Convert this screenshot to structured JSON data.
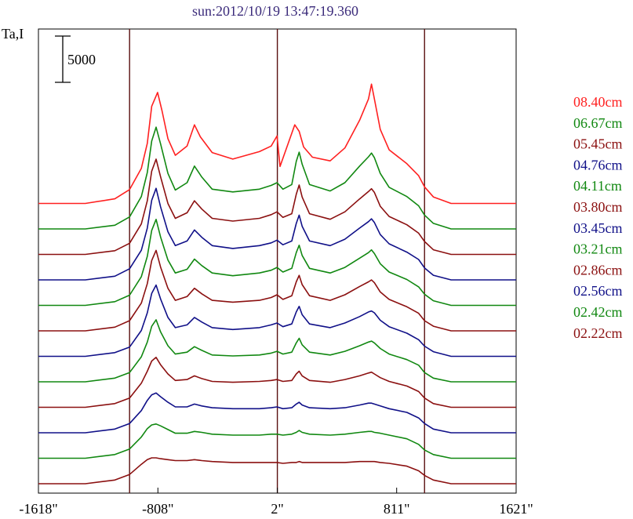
{
  "chart_data": {
    "type": "line",
    "title": "sun:2012/10/19 13:47:19.360",
    "ylabel": "Ta,I",
    "scale_bar_label": "5000",
    "scale_bar_value": 5000,
    "x_tick_labels": [
      "-1618\"",
      "-808\"",
      "2\"",
      "811\"",
      "1621\""
    ],
    "x_ticks": [
      -1618,
      -808,
      2,
      811,
      1621
    ],
    "xlim": [
      -1618,
      1621
    ],
    "vertical_lines_x": [
      -1000,
      2,
      1000
    ],
    "legend_placement": "right",
    "series": [
      {
        "name": "08.40cm",
        "color": "#ff2020",
        "offset_index": 11,
        "x": [
          -1618,
          -1300,
          -1100,
          -1000,
          -920,
          -880,
          -850,
          -810,
          -780,
          -740,
          -690,
          -610,
          -560,
          -520,
          -440,
          -300,
          -120,
          -40,
          0,
          20,
          60,
          120,
          150,
          180,
          240,
          360,
          460,
          560,
          620,
          640,
          660,
          700,
          760,
          880,
          960,
          1000,
          1060,
          1180,
          1621
        ],
        "y": [
          0,
          0,
          500,
          1500,
          3800,
          6500,
          10500,
          12000,
          10000,
          7000,
          5200,
          6200,
          8500,
          7200,
          5500,
          4800,
          5600,
          6200,
          7300,
          4000,
          5800,
          8500,
          7800,
          6100,
          5000,
          4600,
          6000,
          9000,
          11300,
          12900,
          11300,
          8000,
          5800,
          4300,
          3000,
          1800,
          700,
          0,
          0
        ]
      },
      {
        "name": "06.67cm",
        "color": "#118811",
        "offset_index": 10,
        "x": [
          -1618,
          -1300,
          -1100,
          -1000,
          -920,
          -880,
          -850,
          -820,
          -790,
          -740,
          -690,
          -610,
          -560,
          -510,
          -440,
          -300,
          -120,
          -40,
          0,
          40,
          100,
          130,
          150,
          170,
          220,
          360,
          460,
          560,
          620,
          640,
          660,
          700,
          760,
          880,
          960,
          1000,
          1060,
          1180,
          1621
        ],
        "y": [
          0,
          0,
          400,
          1300,
          3500,
          6100,
          9500,
          11000,
          9200,
          6000,
          4200,
          5000,
          6800,
          5600,
          4300,
          4000,
          4300,
          4700,
          5000,
          4300,
          4800,
          7300,
          8300,
          7000,
          4800,
          4100,
          5000,
          6800,
          7800,
          8200,
          7700,
          6000,
          4500,
          3500,
          2500,
          1500,
          600,
          0,
          0
        ]
      },
      {
        "name": "05.45cm",
        "color": "#8b1010",
        "offset_index": 9,
        "x": [
          -1618,
          -1300,
          -1100,
          -1000,
          -920,
          -880,
          -850,
          -820,
          -790,
          -740,
          -690,
          -610,
          -560,
          -510,
          -440,
          -300,
          -120,
          -40,
          0,
          40,
          100,
          130,
          150,
          170,
          220,
          360,
          460,
          560,
          620,
          640,
          660,
          700,
          760,
          880,
          960,
          1000,
          1060,
          1180,
          1621
        ],
        "y": [
          0,
          0,
          400,
          1200,
          3300,
          5800,
          9000,
          10300,
          8400,
          5500,
          3900,
          4500,
          5800,
          4900,
          3900,
          3600,
          3900,
          4300,
          4600,
          4000,
          4400,
          6500,
          7500,
          6200,
          4400,
          3800,
          4600,
          6000,
          6800,
          7100,
          6700,
          5200,
          4100,
          3200,
          2300,
          1400,
          500,
          0,
          0
        ]
      },
      {
        "name": "04.76cm",
        "color": "#101088",
        "offset_index": 8,
        "x": [
          -1618,
          -1300,
          -1100,
          -1000,
          -920,
          -880,
          -850,
          -820,
          -790,
          -740,
          -690,
          -610,
          -560,
          -510,
          -440,
          -300,
          -120,
          -40,
          0,
          40,
          100,
          130,
          150,
          170,
          220,
          360,
          460,
          560,
          620,
          640,
          660,
          700,
          760,
          880,
          960,
          1000,
          1060,
          1180,
          1621
        ],
        "y": [
          0,
          0,
          400,
          1200,
          3200,
          5600,
          8600,
          9900,
          7900,
          5200,
          3700,
          4200,
          5400,
          4600,
          3700,
          3400,
          3700,
          4000,
          4300,
          3800,
          4200,
          6100,
          7000,
          5800,
          4200,
          3700,
          4400,
          5600,
          6300,
          6600,
          6200,
          4900,
          3900,
          3000,
          2200,
          1300,
          500,
          0,
          0
        ]
      },
      {
        "name": "04.11cm",
        "color": "#118811",
        "offset_index": 7,
        "x": [
          -1618,
          -1300,
          -1100,
          -1000,
          -920,
          -880,
          -850,
          -820,
          -790,
          -740,
          -690,
          -610,
          -560,
          -510,
          -440,
          -300,
          -120,
          -40,
          0,
          40,
          100,
          130,
          150,
          170,
          220,
          360,
          460,
          560,
          620,
          640,
          660,
          700,
          760,
          880,
          960,
          1000,
          1060,
          1180,
          1621
        ],
        "y": [
          0,
          0,
          400,
          1100,
          3100,
          5300,
          8100,
          9300,
          7400,
          4900,
          3500,
          3900,
          5000,
          4300,
          3500,
          3200,
          3500,
          3800,
          4100,
          3600,
          4000,
          5700,
          6500,
          5400,
          4000,
          3500,
          4100,
          5100,
          5700,
          6000,
          5600,
          4500,
          3600,
          2800,
          2000,
          1200,
          500,
          0,
          0
        ]
      },
      {
        "name": "03.80cm",
        "color": "#8b1010",
        "offset_index": 6,
        "x": [
          -1618,
          -1300,
          -1100,
          -1000,
          -920,
          -880,
          -850,
          -820,
          -790,
          -740,
          -690,
          -610,
          -560,
          -510,
          -440,
          -300,
          -120,
          -40,
          0,
          40,
          100,
          130,
          150,
          170,
          220,
          360,
          460,
          560,
          620,
          640,
          660,
          700,
          760,
          880,
          960,
          1000,
          1060,
          1180,
          1621
        ],
        "y": [
          0,
          0,
          400,
          1100,
          3000,
          5100,
          7600,
          8700,
          6900,
          4600,
          3300,
          3700,
          4600,
          4000,
          3300,
          3100,
          3300,
          3600,
          3900,
          3400,
          3800,
          5300,
          6000,
          5000,
          3800,
          3300,
          3900,
          4800,
          5300,
          5500,
          5200,
          4200,
          3400,
          2600,
          1900,
          1100,
          500,
          0,
          0
        ]
      },
      {
        "name": "03.45cm",
        "color": "#101088",
        "offset_index": 5,
        "x": [
          -1618,
          -1300,
          -1100,
          -1000,
          -920,
          -880,
          -850,
          -820,
          -790,
          -740,
          -690,
          -610,
          -560,
          -510,
          -440,
          -300,
          -120,
          -40,
          0,
          40,
          100,
          130,
          150,
          170,
          220,
          360,
          460,
          560,
          620,
          640,
          660,
          700,
          760,
          880,
          960,
          1000,
          1060,
          1180,
          1621
        ],
        "y": [
          0,
          0,
          400,
          1000,
          2800,
          4700,
          6800,
          7700,
          6200,
          4200,
          3100,
          3400,
          4200,
          3700,
          3100,
          2900,
          3100,
          3400,
          3600,
          3200,
          3500,
          4800,
          5400,
          4500,
          3500,
          3100,
          3600,
          4300,
          4800,
          4900,
          4700,
          3900,
          3200,
          2500,
          1800,
          1100,
          500,
          0,
          0
        ]
      },
      {
        "name": "03.21cm",
        "color": "#118811",
        "offset_index": 4,
        "x": [
          -1618,
          -1300,
          -1100,
          -1000,
          -920,
          -880,
          -850,
          -820,
          -790,
          -740,
          -690,
          -610,
          -560,
          -510,
          -440,
          -300,
          -120,
          -40,
          0,
          40,
          100,
          130,
          150,
          170,
          220,
          360,
          460,
          560,
          620,
          640,
          660,
          700,
          760,
          880,
          960,
          1000,
          1060,
          1180,
          1621
        ],
        "y": [
          0,
          0,
          400,
          1000,
          2700,
          4300,
          6000,
          6700,
          5400,
          3900,
          3000,
          3200,
          3800,
          3400,
          2900,
          2800,
          2900,
          3100,
          3300,
          3000,
          3200,
          4200,
          4700,
          4000,
          3200,
          2900,
          3300,
          3900,
          4300,
          4400,
          4200,
          3600,
          3000,
          2400,
          1800,
          1000,
          400,
          0,
          0
        ]
      },
      {
        "name": "02.86cm",
        "color": "#8b1010",
        "offset_index": 3,
        "x": [
          -1618,
          -1300,
          -1100,
          -1000,
          -920,
          -880,
          -850,
          -820,
          -790,
          -740,
          -690,
          -610,
          -560,
          -510,
          -440,
          -300,
          -120,
          -40,
          0,
          40,
          100,
          130,
          150,
          170,
          220,
          360,
          460,
          560,
          620,
          640,
          660,
          700,
          760,
          880,
          960,
          1000,
          1060,
          1180,
          1621
        ],
        "y": [
          0,
          0,
          400,
          1000,
          2600,
          3900,
          5000,
          5400,
          4600,
          3600,
          2900,
          3000,
          3400,
          3100,
          2800,
          2700,
          2800,
          2900,
          3000,
          2800,
          2900,
          3600,
          3900,
          3400,
          2900,
          2700,
          3000,
          3400,
          3700,
          3800,
          3600,
          3200,
          2800,
          2300,
          1700,
          1000,
          400,
          0,
          0
        ]
      },
      {
        "name": "02.56cm",
        "color": "#101088",
        "offset_index": 2,
        "x": [
          -1618,
          -1300,
          -1100,
          -1000,
          -920,
          -880,
          -850,
          -820,
          -790,
          -740,
          -690,
          -610,
          -560,
          -510,
          -440,
          -300,
          -120,
          -40,
          0,
          40,
          100,
          130,
          150,
          170,
          220,
          360,
          460,
          560,
          620,
          640,
          660,
          700,
          760,
          880,
          960,
          1000,
          1060,
          1180,
          1621
        ],
        "y": [
          0,
          0,
          400,
          1000,
          2400,
          3500,
          4100,
          4300,
          3900,
          3300,
          2800,
          2800,
          3100,
          2900,
          2700,
          2600,
          2600,
          2700,
          2800,
          2600,
          2700,
          3100,
          3300,
          3000,
          2700,
          2600,
          2700,
          3000,
          3200,
          3200,
          3100,
          2900,
          2600,
          2200,
          1600,
          1000,
          400,
          0,
          0
        ]
      },
      {
        "name": "02.42cm",
        "color": "#118811",
        "offset_index": 1,
        "x": [
          -1618,
          -1300,
          -1100,
          -1000,
          -920,
          -880,
          -850,
          -820,
          -790,
          -740,
          -690,
          -610,
          -560,
          -510,
          -440,
          -300,
          -120,
          -40,
          0,
          40,
          100,
          130,
          150,
          170,
          220,
          360,
          460,
          560,
          620,
          640,
          660,
          700,
          760,
          880,
          960,
          1000,
          1060,
          1180,
          1621
        ],
        "y": [
          0,
          0,
          400,
          1000,
          2300,
          3200,
          3600,
          3700,
          3500,
          3100,
          2700,
          2700,
          2900,
          2800,
          2600,
          2500,
          2500,
          2600,
          2600,
          2500,
          2600,
          2800,
          3000,
          2800,
          2600,
          2500,
          2600,
          2800,
          2900,
          2900,
          2800,
          2700,
          2500,
          2100,
          1500,
          900,
          400,
          0,
          0
        ]
      },
      {
        "name": "02.22cm",
        "color": "#8b1010",
        "offset_index": 0,
        "x": [
          -1618,
          -1300,
          -1100,
          -1000,
          -920,
          -880,
          -850,
          -820,
          -790,
          -740,
          -690,
          -610,
          -560,
          -510,
          -440,
          -300,
          -120,
          -40,
          0,
          40,
          100,
          130,
          150,
          170,
          220,
          360,
          460,
          560,
          620,
          640,
          660,
          700,
          760,
          880,
          960,
          1000,
          1060,
          1180,
          1621
        ],
        "y": [
          0,
          0,
          400,
          1000,
          2100,
          2600,
          2800,
          2800,
          2700,
          2600,
          2500,
          2500,
          2600,
          2500,
          2400,
          2300,
          2300,
          2300,
          2300,
          2200,
          2300,
          2300,
          2400,
          2300,
          2300,
          2300,
          2300,
          2400,
          2400,
          2400,
          2400,
          2300,
          2200,
          1900,
          1400,
          900,
          400,
          0,
          0
        ]
      }
    ]
  }
}
